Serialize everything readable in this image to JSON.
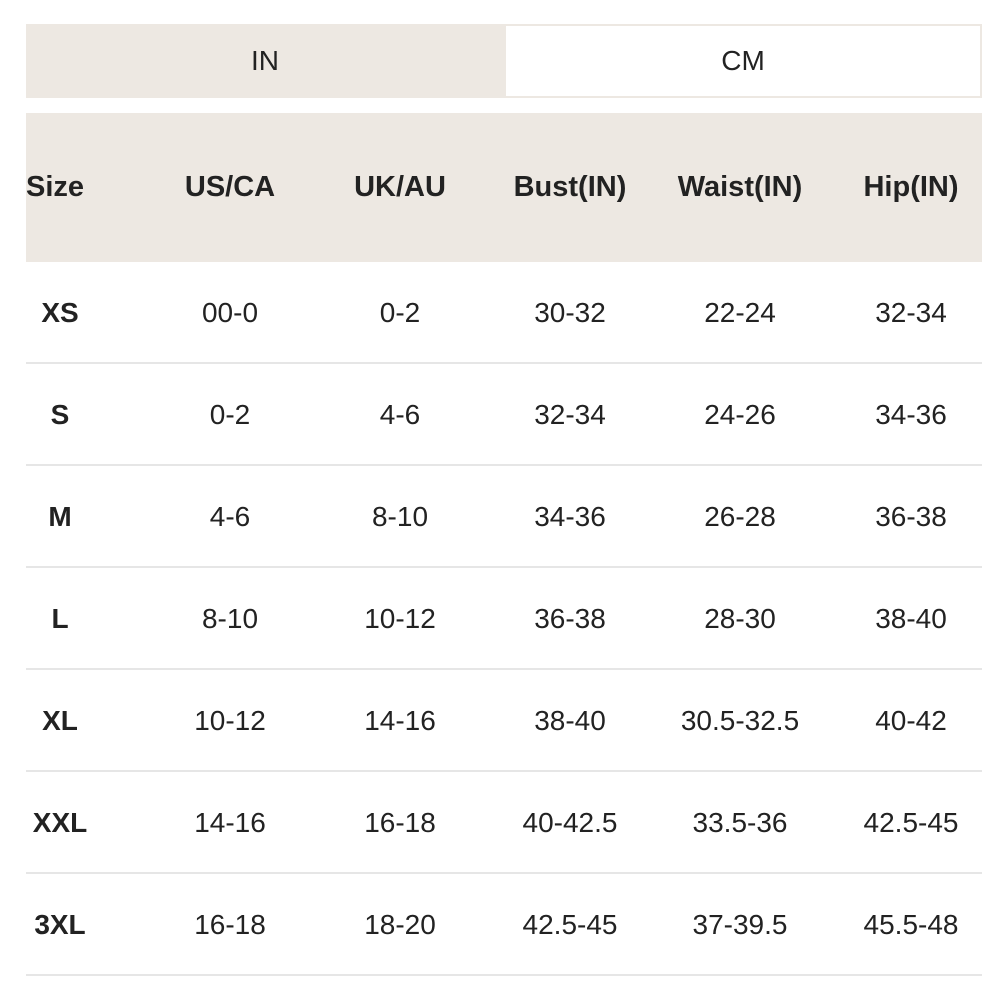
{
  "tabs": [
    "IN",
    "CM"
  ],
  "table": {
    "header": [
      "Size",
      "US/CA",
      "UK/AU",
      "Bust(IN)",
      "Waist(IN)",
      "Hip(IN)"
    ],
    "rows": [
      [
        "XS",
        "00-0",
        "0-2",
        "30-32",
        "22-24",
        "32-34"
      ],
      [
        "S",
        "0-2",
        "4-6",
        "32-34",
        "24-26",
        "34-36"
      ],
      [
        "M",
        "4-6",
        "8-10",
        "34-36",
        "26-28",
        "36-38"
      ],
      [
        "L",
        "8-10",
        "10-12",
        "36-38",
        "28-30",
        "38-40"
      ],
      [
        "XL",
        "10-12",
        "14-16",
        "38-40",
        "30.5-32.5",
        "40-42"
      ],
      [
        "XXL",
        "14-16",
        "16-18",
        "40-42.5",
        "33.5-36",
        "42.5-45"
      ],
      [
        "3XL",
        "16-18",
        "18-20",
        "42.5-45",
        "37-39.5",
        "45.5-48"
      ]
    ]
  }
}
